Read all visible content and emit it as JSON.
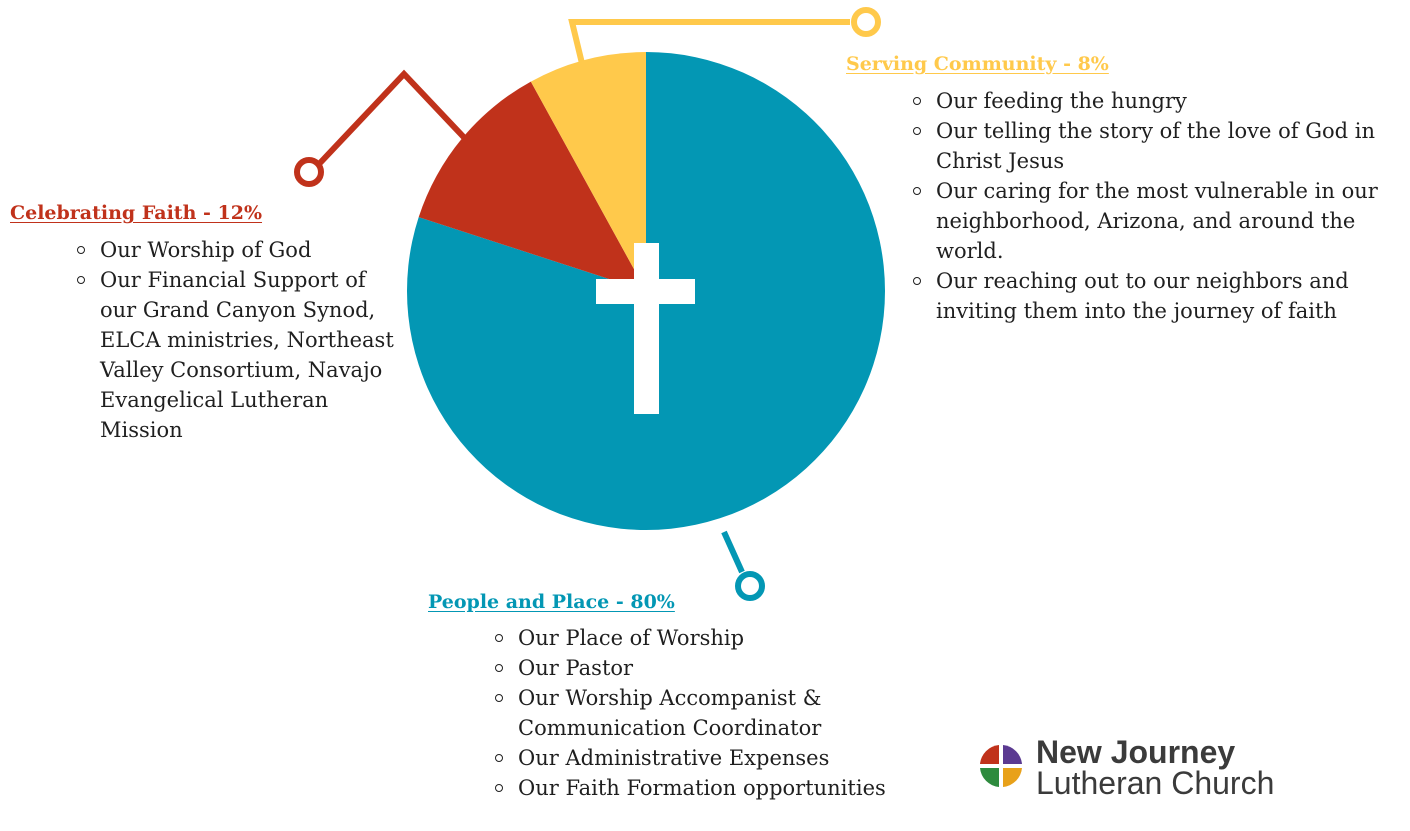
{
  "chart_data": {
    "type": "pie",
    "categories": [
      "People and Place",
      "Celebrating Faith",
      "Serving Community"
    ],
    "values": [
      80,
      12,
      8
    ],
    "colors": [
      "#0397B4",
      "#C0321B",
      "#FFC94B"
    ],
    "center_icon": "cross-icon"
  },
  "sections": {
    "serving": {
      "heading": "Serving Community - 8%",
      "color": "#FFC94B",
      "items": [
        "Our feeding the hungry",
        "Our telling the story of the love of God in Christ Jesus",
        "Our caring for the most vulnerable in our neighborhood, Arizona, and around the world.",
        "Our reaching out to our neighbors and inviting them into the journey of faith"
      ]
    },
    "celebrating": {
      "heading": "Celebrating Faith - 12%",
      "color": "#C0321B",
      "items": [
        "Our Worship of God",
        "Our Financial Support of our Grand Canyon Synod, ELCA ministries, Northeast Valley Consortium,  Navajo Evangelical Lutheran Mission"
      ]
    },
    "people": {
      "heading": "People and Place - 80%",
      "color": "#0397B4",
      "items": [
        "Our Place of Worship",
        "Our Pastor",
        "Our Worship Accompanist & Communication Coordinator",
        "Our Administrative Expenses",
        "Our Faith Formation opportunities"
      ]
    }
  },
  "logo": {
    "line1": "New Journey",
    "line2": "Lutheran Church",
    "icon": "cross-logo-icon",
    "colors": [
      "#C0321B",
      "#5B3A91",
      "#2E8B3E",
      "#E8A11A"
    ]
  }
}
